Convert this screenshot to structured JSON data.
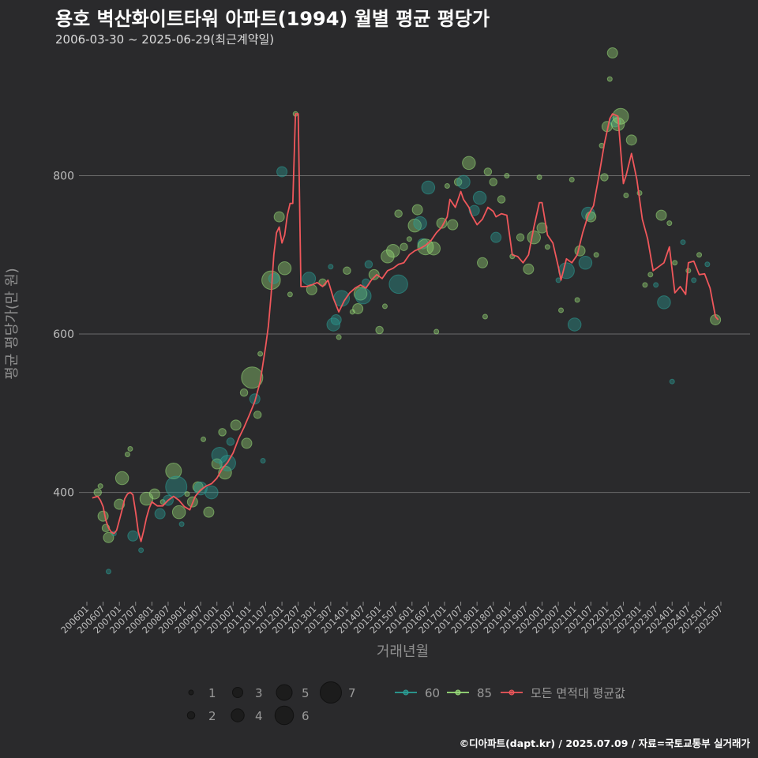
{
  "header": {
    "title": "용호 벽산화이트타워 아파트(1994) 월별 평균 평당가",
    "subtitle": "2006-03-30 ~ 2025-06-29(최근계약일)"
  },
  "footer": {
    "credit": "©디아파트(dapt.kr) / 2025.07.09 / 자료=국토교통부 실거래가"
  },
  "colors": {
    "background": "#2a2a2c",
    "grid": "#6b6b6b",
    "s60": "#2aa198",
    "s85": "#9be07a",
    "avg": "#f0575b"
  },
  "chart_data": {
    "type": "line+scatter",
    "xlabel": "거래년월",
    "ylabel": "평균 평당가(만 원)",
    "ylim": [
      262,
      962
    ],
    "yticks": [
      400,
      600,
      800
    ],
    "xticks": [
      "200601",
      "200607",
      "200701",
      "200707",
      "200801",
      "200807",
      "200901",
      "200907",
      "201001",
      "201007",
      "201101",
      "201107",
      "201201",
      "201207",
      "201301",
      "201307",
      "201401",
      "201407",
      "201501",
      "201507",
      "201601",
      "201607",
      "201701",
      "201707",
      "201801",
      "201807",
      "201901",
      "201907",
      "202001",
      "202007",
      "202101",
      "202107",
      "202201",
      "202207",
      "202301",
      "202307",
      "202401",
      "202407",
      "202501",
      "202507"
    ],
    "legend": {
      "size_title": "",
      "sizes": [
        1,
        2,
        3,
        4,
        5,
        6,
        7
      ],
      "series": [
        {
          "key": "s60",
          "label": "60"
        },
        {
          "key": "s85",
          "label": "85"
        },
        {
          "key": "avg",
          "label": "모든 면적대 평균값"
        }
      ]
    },
    "average_line": [
      [
        "2006-03",
        393
      ],
      [
        "2006-05",
        395
      ],
      [
        "2006-06",
        390
      ],
      [
        "2006-07",
        382
      ],
      [
        "2006-08",
        365
      ],
      [
        "2006-09",
        355
      ],
      [
        "2006-10",
        350
      ],
      [
        "2006-11",
        348
      ],
      [
        "2006-12",
        352
      ],
      [
        "2007-01",
        365
      ],
      [
        "2007-02",
        378
      ],
      [
        "2007-03",
        392
      ],
      [
        "2007-04",
        398
      ],
      [
        "2007-05",
        400
      ],
      [
        "2007-06",
        397
      ],
      [
        "2007-07",
        375
      ],
      [
        "2007-08",
        350
      ],
      [
        "2007-09",
        338
      ],
      [
        "2007-10",
        352
      ],
      [
        "2007-11",
        368
      ],
      [
        "2007-12",
        380
      ],
      [
        "2008-01",
        388
      ],
      [
        "2008-03",
        383
      ],
      [
        "2008-05",
        383
      ],
      [
        "2008-07",
        390
      ],
      [
        "2008-09",
        395
      ],
      [
        "2008-11",
        390
      ],
      [
        "2009-01",
        382
      ],
      [
        "2009-03",
        378
      ],
      [
        "2009-05",
        395
      ],
      [
        "2009-07",
        403
      ],
      [
        "2009-09",
        408
      ],
      [
        "2009-11",
        411
      ],
      [
        "2010-01",
        418
      ],
      [
        "2010-03",
        430
      ],
      [
        "2010-05",
        438
      ],
      [
        "2010-07",
        450
      ],
      [
        "2010-09",
        468
      ],
      [
        "2010-11",
        482
      ],
      [
        "2011-01",
        498
      ],
      [
        "2011-03",
        515
      ],
      [
        "2011-05",
        540
      ],
      [
        "2011-07",
        585
      ],
      [
        "2011-08",
        610
      ],
      [
        "2011-09",
        650
      ],
      [
        "2011-10",
        700
      ],
      [
        "2011-11",
        728
      ],
      [
        "2011-12",
        735
      ],
      [
        "2012-01",
        715
      ],
      [
        "2012-02",
        725
      ],
      [
        "2012-03",
        750
      ],
      [
        "2012-04",
        765
      ],
      [
        "2012-05",
        765
      ],
      [
        "2012-06",
        878
      ],
      [
        "2012-07",
        878
      ],
      [
        "2012-08",
        660
      ],
      [
        "2012-10",
        660
      ],
      [
        "2012-12",
        662
      ],
      [
        "2013-02",
        665
      ],
      [
        "2013-04",
        660
      ],
      [
        "2013-06",
        668
      ],
      [
        "2013-08",
        645
      ],
      [
        "2013-10",
        628
      ],
      [
        "2013-12",
        642
      ],
      [
        "2014-02",
        652
      ],
      [
        "2014-04",
        658
      ],
      [
        "2014-06",
        662
      ],
      [
        "2014-08",
        658
      ],
      [
        "2014-10",
        668
      ],
      [
        "2014-12",
        675
      ],
      [
        "2015-02",
        670
      ],
      [
        "2015-04",
        680
      ],
      [
        "2015-06",
        683
      ],
      [
        "2015-08",
        688
      ],
      [
        "2015-10",
        690
      ],
      [
        "2015-12",
        700
      ],
      [
        "2016-02",
        705
      ],
      [
        "2016-04",
        708
      ],
      [
        "2016-06",
        712
      ],
      [
        "2016-08",
        718
      ],
      [
        "2016-10",
        728
      ],
      [
        "2016-12",
        735
      ],
      [
        "2017-02",
        748
      ],
      [
        "2017-03",
        770
      ],
      [
        "2017-05",
        760
      ],
      [
        "2017-07",
        780
      ],
      [
        "2017-08",
        770
      ],
      [
        "2017-10",
        760
      ],
      [
        "2017-11",
        750
      ],
      [
        "2018-01",
        738
      ],
      [
        "2018-03",
        745
      ],
      [
        "2018-05",
        760
      ],
      [
        "2018-07",
        755
      ],
      [
        "2018-08",
        748
      ],
      [
        "2018-10",
        752
      ],
      [
        "2018-12",
        750
      ],
      [
        "2019-02",
        700
      ],
      [
        "2019-04",
        698
      ],
      [
        "2019-06",
        690
      ],
      [
        "2019-08",
        700
      ],
      [
        "2019-10",
        735
      ],
      [
        "2019-12",
        766
      ],
      [
        "2020-01",
        766
      ],
      [
        "2020-03",
        725
      ],
      [
        "2020-05",
        715
      ],
      [
        "2020-07",
        685
      ],
      [
        "2020-08",
        668
      ],
      [
        "2020-10",
        695
      ],
      [
        "2020-12",
        690
      ],
      [
        "2021-02",
        700
      ],
      [
        "2021-04",
        728
      ],
      [
        "2021-06",
        750
      ],
      [
        "2021-08",
        762
      ],
      [
        "2021-10",
        800
      ],
      [
        "2021-12",
        840
      ],
      [
        "2022-02",
        872
      ],
      [
        "2022-03",
        878
      ],
      [
        "2022-05",
        875
      ],
      [
        "2022-07",
        790
      ],
      [
        "2022-08",
        800
      ],
      [
        "2022-10",
        828
      ],
      [
        "2022-12",
        795
      ],
      [
        "2023-02",
        745
      ],
      [
        "2023-04",
        720
      ],
      [
        "2023-06",
        680
      ],
      [
        "2023-08",
        685
      ],
      [
        "2023-10",
        690
      ],
      [
        "2023-12",
        710
      ],
      [
        "2024-02",
        652
      ],
      [
        "2024-04",
        660
      ],
      [
        "2024-06",
        650
      ],
      [
        "2024-07",
        690
      ],
      [
        "2024-09",
        692
      ],
      [
        "2024-11",
        675
      ],
      [
        "2025-01",
        676
      ],
      [
        "2025-03",
        658
      ],
      [
        "2025-05",
        622
      ],
      [
        "2025-06",
        618
      ]
    ],
    "points": [
      [
        "2006-05",
        "s85",
        2,
        400
      ],
      [
        "2006-07",
        "s85",
        3,
        370
      ],
      [
        "2006-08",
        "s85",
        2,
        355
      ],
      [
        "2006-09",
        "s85",
        3,
        343
      ],
      [
        "2006-11",
        "s60",
        1,
        348
      ],
      [
        "2006-09",
        "s60",
        1,
        300
      ],
      [
        "2006-06",
        "s85",
        1,
        408
      ],
      [
        "2007-01",
        "s85",
        3,
        385
      ],
      [
        "2007-02",
        "s85",
        4,
        418
      ],
      [
        "2007-04",
        "s85",
        1,
        448
      ],
      [
        "2007-05",
        "s85",
        1,
        455
      ],
      [
        "2007-06",
        "s60",
        3,
        345
      ],
      [
        "2007-09",
        "s60",
        1,
        327
      ],
      [
        "2007-11",
        "s85",
        4,
        392
      ],
      [
        "2008-02",
        "s85",
        3,
        398
      ],
      [
        "2008-04",
        "s60",
        3,
        373
      ],
      [
        "2008-05",
        "s85",
        1,
        388
      ],
      [
        "2008-07",
        "s60",
        3,
        390
      ],
      [
        "2008-09",
        "s85",
        5,
        427
      ],
      [
        "2008-10",
        "s60",
        7,
        407
      ],
      [
        "2008-11",
        "s85",
        4,
        375
      ],
      [
        "2008-12",
        "s60",
        1,
        360
      ],
      [
        "2009-02",
        "s85",
        1,
        398
      ],
      [
        "2009-04",
        "s85",
        3,
        388
      ],
      [
        "2009-06",
        "s85",
        3,
        407
      ],
      [
        "2009-07",
        "s60",
        4,
        405
      ],
      [
        "2009-08",
        "s85",
        1,
        467
      ],
      [
        "2009-10",
        "s85",
        3,
        375
      ],
      [
        "2009-11",
        "s60",
        4,
        400
      ],
      [
        "2010-01",
        "s85",
        3,
        436
      ],
      [
        "2010-02",
        "s60",
        5,
        447
      ],
      [
        "2010-03",
        "s85",
        2,
        476
      ],
      [
        "2010-04",
        "s85",
        4,
        425
      ],
      [
        "2010-05",
        "s60",
        5,
        437
      ],
      [
        "2010-06",
        "s60",
        2,
        464
      ],
      [
        "2010-08",
        "s85",
        3,
        485
      ],
      [
        "2010-11",
        "s85",
        2,
        526
      ],
      [
        "2010-12",
        "s85",
        3,
        462
      ],
      [
        "2011-03",
        "s60",
        3,
        518
      ],
      [
        "2011-02",
        "s85",
        7,
        545
      ],
      [
        "2011-04",
        "s85",
        2,
        498
      ],
      [
        "2011-05",
        "s85",
        1,
        575
      ],
      [
        "2011-06",
        "s60",
        1,
        440
      ],
      [
        "2011-09",
        "s85",
        6,
        668
      ],
      [
        "2011-10",
        "s60",
        3,
        670
      ],
      [
        "2011-12",
        "s85",
        3,
        748
      ],
      [
        "2012-01",
        "s60",
        3,
        805
      ],
      [
        "2012-02",
        "s85",
        4,
        683
      ],
      [
        "2012-04",
        "s85",
        1,
        650
      ],
      [
        "2012-06",
        "s85",
        1,
        878
      ],
      [
        "2012-11",
        "s60",
        4,
        670
      ],
      [
        "2012-12",
        "s85",
        3,
        656
      ],
      [
        "2013-04",
        "s85",
        2,
        665
      ],
      [
        "2013-07",
        "s60",
        1,
        685
      ],
      [
        "2013-08",
        "s60",
        4,
        612
      ],
      [
        "2013-09",
        "s60",
        3,
        618
      ],
      [
        "2013-10",
        "s85",
        1,
        596
      ],
      [
        "2013-11",
        "s60",
        5,
        645
      ],
      [
        "2014-01",
        "s85",
        2,
        680
      ],
      [
        "2014-03",
        "s85",
        1,
        628
      ],
      [
        "2014-05",
        "s85",
        3,
        632
      ],
      [
        "2014-06",
        "s85",
        4,
        651
      ],
      [
        "2014-07",
        "s60",
        5,
        648
      ],
      [
        "2014-08",
        "s60",
        2,
        665
      ],
      [
        "2014-09",
        "s60",
        2,
        688
      ],
      [
        "2014-11",
        "s85",
        3,
        675
      ],
      [
        "2015-01",
        "s85",
        2,
        605
      ],
      [
        "2015-03",
        "s85",
        1,
        635
      ],
      [
        "2015-04",
        "s85",
        4,
        698
      ],
      [
        "2015-06",
        "s85",
        4,
        705
      ],
      [
        "2015-08",
        "s60",
        6,
        663
      ],
      [
        "2015-08",
        "s85",
        2,
        752
      ],
      [
        "2015-10",
        "s85",
        2,
        710
      ],
      [
        "2015-12",
        "s85",
        1,
        720
      ],
      [
        "2016-02",
        "s85",
        4,
        737
      ],
      [
        "2016-03",
        "s85",
        3,
        757
      ],
      [
        "2016-04",
        "s60",
        4,
        740
      ],
      [
        "2016-05",
        "s60",
        3,
        714
      ],
      [
        "2016-06",
        "s85",
        5,
        710
      ],
      [
        "2016-07",
        "s60",
        4,
        785
      ],
      [
        "2016-09",
        "s85",
        4,
        708
      ],
      [
        "2016-10",
        "s85",
        1,
        603
      ],
      [
        "2016-12",
        "s85",
        3,
        740
      ],
      [
        "2017-02",
        "s85",
        1,
        787
      ],
      [
        "2017-04",
        "s85",
        3,
        738
      ],
      [
        "2017-06",
        "s85",
        2,
        792
      ],
      [
        "2017-08",
        "s60",
        4,
        792
      ],
      [
        "2017-10",
        "s85",
        4,
        816
      ],
      [
        "2017-12",
        "s60",
        3,
        756
      ],
      [
        "2018-02",
        "s60",
        4,
        772
      ],
      [
        "2018-03",
        "s85",
        3,
        690
      ],
      [
        "2018-04",
        "s85",
        1,
        622
      ],
      [
        "2018-05",
        "s85",
        2,
        805
      ],
      [
        "2018-07",
        "s85",
        2,
        792
      ],
      [
        "2018-08",
        "s60",
        3,
        722
      ],
      [
        "2018-10",
        "s85",
        2,
        770
      ],
      [
        "2018-12",
        "s85",
        1,
        800
      ],
      [
        "2019-02",
        "s85",
        1,
        698
      ],
      [
        "2019-05",
        "s85",
        2,
        722
      ],
      [
        "2019-08",
        "s85",
        3,
        682
      ],
      [
        "2019-10",
        "s85",
        4,
        722
      ],
      [
        "2019-12",
        "s85",
        1,
        798
      ],
      [
        "2020-01",
        "s85",
        3,
        734
      ],
      [
        "2020-03",
        "s85",
        1,
        710
      ],
      [
        "2020-07",
        "s60",
        1,
        668
      ],
      [
        "2020-08",
        "s85",
        1,
        630
      ],
      [
        "2020-10",
        "s60",
        5,
        680
      ],
      [
        "2020-12",
        "s85",
        1,
        795
      ],
      [
        "2021-01",
        "s60",
        4,
        612
      ],
      [
        "2021-02",
        "s85",
        1,
        643
      ],
      [
        "2021-03",
        "s85",
        3,
        705
      ],
      [
        "2021-05",
        "s60",
        4,
        690
      ],
      [
        "2021-06",
        "s60",
        4,
        752
      ],
      [
        "2021-07",
        "s85",
        3,
        748
      ],
      [
        "2021-09",
        "s85",
        1,
        700
      ],
      [
        "2021-11",
        "s85",
        1,
        838
      ],
      [
        "2021-12",
        "s85",
        2,
        798
      ],
      [
        "2022-01",
        "s85",
        3,
        862
      ],
      [
        "2022-02",
        "s85",
        1,
        922
      ],
      [
        "2022-03",
        "s85",
        3,
        955
      ],
      [
        "2022-04",
        "s60",
        3,
        868
      ],
      [
        "2022-05",
        "s85",
        4,
        865
      ],
      [
        "2022-06",
        "s85",
        5,
        875
      ],
      [
        "2022-08",
        "s85",
        1,
        775
      ],
      [
        "2022-10",
        "s85",
        3,
        845
      ],
      [
        "2023-01",
        "s85",
        1,
        778
      ],
      [
        "2023-03",
        "s85",
        1,
        662
      ],
      [
        "2023-05",
        "s85",
        1,
        675
      ],
      [
        "2023-07",
        "s60",
        1,
        662
      ],
      [
        "2023-09",
        "s85",
        3,
        750
      ],
      [
        "2023-10",
        "s60",
        4,
        640
      ],
      [
        "2023-12",
        "s85",
        1,
        740
      ],
      [
        "2024-01",
        "s60",
        1,
        540
      ],
      [
        "2024-02",
        "s85",
        1,
        690
      ],
      [
        "2024-05",
        "s60",
        1,
        716
      ],
      [
        "2024-07",
        "s85",
        1,
        680
      ],
      [
        "2024-09",
        "s60",
        1,
        668
      ],
      [
        "2024-11",
        "s85",
        1,
        700
      ],
      [
        "2025-02",
        "s60",
        1,
        688
      ],
      [
        "2025-05",
        "s85",
        3,
        618
      ]
    ]
  }
}
